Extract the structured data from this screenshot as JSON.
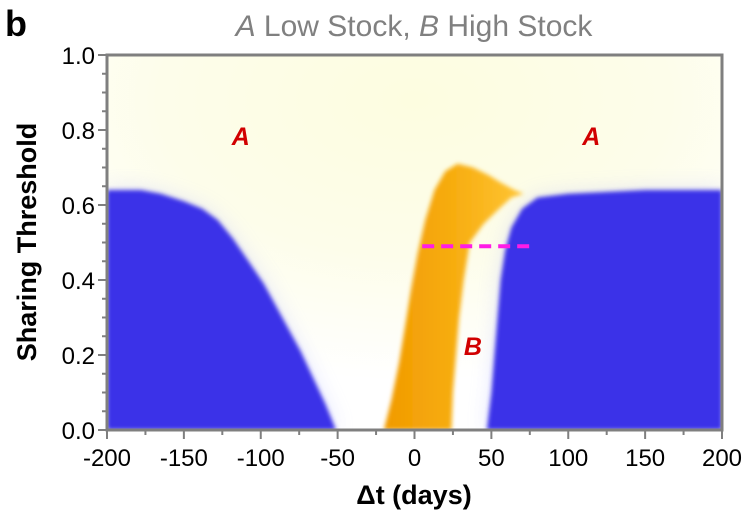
{
  "panel_label": "b",
  "title_parts": [
    {
      "text": "A",
      "italic": true
    },
    {
      "text": " Low Stock, ",
      "italic": false
    },
    {
      "text": "B",
      "italic": true
    },
    {
      "text": " High Stock",
      "italic": false
    }
  ],
  "chart_data": {
    "type": "heatmap",
    "title": "A Low Stock, B High Stock",
    "xlabel": "Δt (days)",
    "ylabel": "Sharing Threshold",
    "xlim": [
      -200,
      200
    ],
    "ylim": [
      0.0,
      1.0
    ],
    "x_ticks": [
      -200,
      -150,
      -100,
      -50,
      0,
      50,
      100,
      150,
      200
    ],
    "x_tick_labels": [
      "-200",
      "-150",
      "-100",
      "-50",
      "0",
      "50",
      "100",
      "150",
      "200"
    ],
    "y_ticks": [
      0.0,
      0.2,
      0.4,
      0.6,
      0.8,
      1.0
    ],
    "y_tick_labels": [
      "0.0",
      "0.2",
      "0.4",
      "0.6",
      "0.8",
      "1.0"
    ],
    "grid": false,
    "colors": {
      "background_light": "#fdfde4",
      "background_white": "#ffffff",
      "blue_region": "#3b33e8",
      "orange_region": "#f5a100",
      "orange_light": "#ffc733",
      "dashed_line": "#ff1ce6",
      "annotation": "#d10000",
      "axis": "#808080",
      "title": "#808080"
    },
    "regions": [
      {
        "name": "blue-left",
        "color": "blue_region",
        "polygon": [
          [
            -200,
            0.0
          ],
          [
            -200,
            0.64
          ],
          [
            -190,
            0.64
          ],
          [
            -178,
            0.64
          ],
          [
            -165,
            0.63
          ],
          [
            -150,
            0.61
          ],
          [
            -138,
            0.59
          ],
          [
            -128,
            0.56
          ],
          [
            -118,
            0.51
          ],
          [
            -108,
            0.45
          ],
          [
            -98,
            0.39
          ],
          [
            -90,
            0.33
          ],
          [
            -82,
            0.27
          ],
          [
            -74,
            0.21
          ],
          [
            -66,
            0.14
          ],
          [
            -58,
            0.07
          ],
          [
            -51,
            0.0
          ]
        ]
      },
      {
        "name": "blue-right",
        "color": "blue_region",
        "polygon": [
          [
            47,
            0.0
          ],
          [
            50,
            0.1
          ],
          [
            52,
            0.2
          ],
          [
            54,
            0.3
          ],
          [
            56,
            0.4
          ],
          [
            59,
            0.48
          ],
          [
            63,
            0.54
          ],
          [
            70,
            0.59
          ],
          [
            80,
            0.62
          ],
          [
            100,
            0.63
          ],
          [
            150,
            0.64
          ],
          [
            200,
            0.64
          ],
          [
            200,
            0.0
          ]
        ]
      },
      {
        "name": "orange-band",
        "color": "orange_region",
        "polygon": [
          [
            -20,
            0.0
          ],
          [
            -15,
            0.08
          ],
          [
            -10,
            0.18
          ],
          [
            -6,
            0.28
          ],
          [
            -2,
            0.38
          ],
          [
            2,
            0.47
          ],
          [
            7,
            0.56
          ],
          [
            13,
            0.64
          ],
          [
            20,
            0.69
          ],
          [
            28,
            0.71
          ],
          [
            38,
            0.7
          ],
          [
            48,
            0.68
          ],
          [
            56,
            0.66
          ],
          [
            65,
            0.64
          ],
          [
            71,
            0.63
          ],
          [
            63,
            0.62
          ],
          [
            55,
            0.59
          ],
          [
            45,
            0.55
          ],
          [
            36,
            0.5
          ],
          [
            32,
            0.4
          ],
          [
            29,
            0.3
          ],
          [
            27,
            0.2
          ],
          [
            25,
            0.1
          ],
          [
            24,
            0.0
          ]
        ]
      }
    ],
    "dashed_line": {
      "x": [
        5,
        77
      ],
      "y": 0.49
    },
    "annotations": [
      {
        "text": "A",
        "x": -113,
        "y": 0.76
      },
      {
        "text": "A",
        "x": 115,
        "y": 0.76
      },
      {
        "text": "B",
        "x": 38,
        "y": 0.2
      }
    ]
  }
}
